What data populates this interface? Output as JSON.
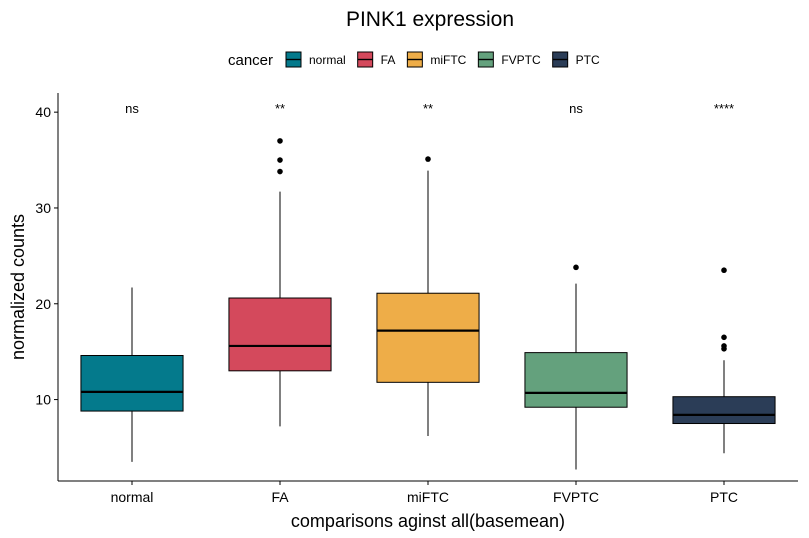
{
  "chart_data": {
    "type": "boxplot",
    "title": "PINK1 expression",
    "xlabel": "comparisons aginst all(basemean)",
    "ylabel": "normalized counts",
    "ylim": [
      1.5,
      42.0
    ],
    "yticks": [
      10,
      20,
      30,
      40
    ],
    "legend": {
      "title": "cancer",
      "placement": "top",
      "entries": [
        {
          "label": "normal",
          "color": "#047A8C"
        },
        {
          "label": "FA",
          "color": "#D4495C"
        },
        {
          "label": "miFTC",
          "color": "#EEAD48"
        },
        {
          "label": "FVPTC",
          "color": "#64A17D"
        },
        {
          "label": "PTC",
          "color": "#2B3D57"
        }
      ]
    },
    "categories": [
      "normal",
      "FA",
      "miFTC",
      "FVPTC",
      "PTC"
    ],
    "boxes": [
      {
        "category": "normal",
        "whisker_low": 3.5,
        "q1": 8.8,
        "median": 10.8,
        "q3": 14.6,
        "whisker_high": 21.7,
        "outliers": [],
        "significance": "ns"
      },
      {
        "category": "FA",
        "whisker_low": 7.2,
        "q1": 13.0,
        "median": 15.6,
        "q3": 20.6,
        "whisker_high": 31.7,
        "outliers": [
          33.8,
          35.0,
          37.0
        ],
        "significance": "**"
      },
      {
        "category": "miFTC",
        "whisker_low": 6.2,
        "q1": 11.8,
        "median": 17.2,
        "q3": 21.1,
        "whisker_high": 33.9,
        "outliers": [
          35.1
        ],
        "significance": "**"
      },
      {
        "category": "FVPTC",
        "whisker_low": 2.7,
        "q1": 9.2,
        "median": 10.7,
        "q3": 14.9,
        "whisker_high": 22.1,
        "outliers": [
          23.8
        ],
        "significance": "ns"
      },
      {
        "category": "PTC",
        "whisker_low": 4.4,
        "q1": 7.5,
        "median": 8.4,
        "q3": 10.3,
        "whisker_high": 14.1,
        "outliers": [
          15.3,
          15.6,
          16.5,
          23.5
        ],
        "significance": "****"
      }
    ],
    "grid": false
  }
}
